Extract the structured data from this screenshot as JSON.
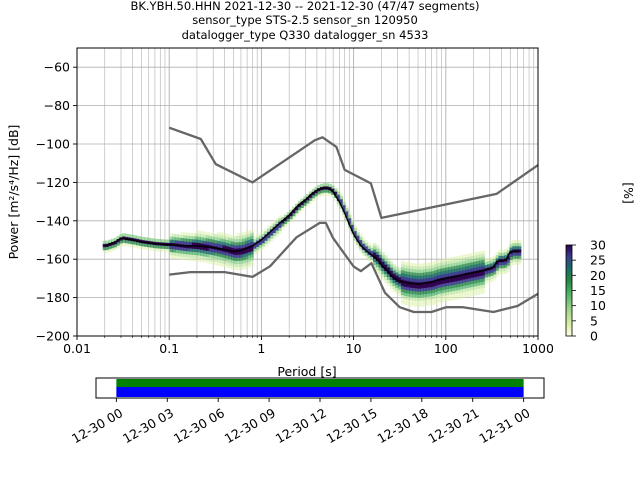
{
  "chart_data": {
    "type": "line",
    "title_lines": [
      "BK.YBH.50.HHN   2021-12-30 -- 2021-12-30  (47/47 segments)",
      "sensor_type STS-2.5 sensor_sn 120950",
      "datalogger_type Q330 datalogger_sn 4533"
    ],
    "xlabel": "Period [s]",
    "ylabel": "Power [m²/s⁴/Hz] [dB]",
    "x_scale": "log",
    "xlim": [
      0.01,
      1000
    ],
    "ylim": [
      -200,
      -50
    ],
    "x_ticks": [
      {
        "value": 0.01,
        "label": "0.01"
      },
      {
        "value": 0.1,
        "label": "0.1"
      },
      {
        "value": 1,
        "label": "1"
      },
      {
        "value": 10,
        "label": "10"
      },
      {
        "value": 100,
        "label": "100"
      },
      {
        "value": 1000,
        "label": "1000"
      }
    ],
    "y_ticks": [
      {
        "value": -60,
        "label": "−60"
      },
      {
        "value": -80,
        "label": "−80"
      },
      {
        "value": -100,
        "label": "−100"
      },
      {
        "value": -120,
        "label": "−120"
      },
      {
        "value": -140,
        "label": "−140"
      },
      {
        "value": -160,
        "label": "−160"
      },
      {
        "value": -180,
        "label": "−180"
      },
      {
        "value": -200,
        "label": "−200"
      }
    ],
    "grid": true,
    "series": [
      {
        "role": "mean",
        "color": "#000000",
        "points": [
          [
            0.02,
            -153
          ],
          [
            0.025,
            -151.5
          ],
          [
            0.03,
            -149
          ],
          [
            0.04,
            -150
          ],
          [
            0.05,
            -151
          ],
          [
            0.07,
            -152
          ],
          [
            0.1,
            -152.5
          ],
          [
            0.15,
            -153
          ],
          [
            0.2,
            -153
          ],
          [
            0.3,
            -154
          ],
          [
            0.4,
            -155
          ],
          [
            0.5,
            -156
          ],
          [
            0.6,
            -155.5
          ],
          [
            0.8,
            -153
          ],
          [
            1,
            -150
          ],
          [
            1.3,
            -145
          ],
          [
            1.6,
            -141
          ],
          [
            2,
            -137
          ],
          [
            2.5,
            -132
          ],
          [
            3,
            -129
          ],
          [
            3.5,
            -126
          ],
          [
            4,
            -124
          ],
          [
            4.5,
            -123
          ],
          [
            5,
            -123
          ],
          [
            5.5,
            -123.5
          ],
          [
            6,
            -125
          ],
          [
            7,
            -130
          ],
          [
            8,
            -136
          ],
          [
            9,
            -142
          ],
          [
            10,
            -147
          ],
          [
            12,
            -153
          ],
          [
            14,
            -156
          ],
          [
            16,
            -158
          ],
          [
            18,
            -160
          ],
          [
            20,
            -163
          ],
          [
            23,
            -166
          ],
          [
            26,
            -169
          ],
          [
            30,
            -171
          ],
          [
            35,
            -172
          ],
          [
            40,
            -172.5
          ],
          [
            50,
            -173
          ],
          [
            60,
            -172.5
          ],
          [
            70,
            -172
          ],
          [
            80,
            -171
          ],
          [
            100,
            -170
          ],
          [
            130,
            -169
          ],
          [
            160,
            -168
          ],
          [
            200,
            -167
          ],
          [
            250,
            -166
          ],
          [
            300,
            -165
          ],
          [
            330,
            -164
          ],
          [
            360,
            -161
          ],
          [
            400,
            -161
          ],
          [
            450,
            -160.5
          ],
          [
            500,
            -156
          ],
          [
            560,
            -156
          ],
          [
            620,
            -156
          ]
        ]
      },
      {
        "role": "high-noise-model",
        "color": "#666666",
        "points": [
          [
            0.1,
            -91.5
          ],
          [
            0.22,
            -97.4
          ],
          [
            0.32,
            -110.5
          ],
          [
            0.8,
            -120
          ],
          [
            3.8,
            -98
          ],
          [
            4.6,
            -96.5
          ],
          [
            6.5,
            -101.5
          ],
          [
            8,
            -113.5
          ],
          [
            15.4,
            -120.5
          ],
          [
            20,
            -138.5
          ],
          [
            354.8,
            -126
          ],
          [
            1000,
            -111
          ]
        ]
      },
      {
        "role": "low-noise-model",
        "color": "#666666",
        "points": [
          [
            0.1,
            -168
          ],
          [
            0.17,
            -166.7
          ],
          [
            0.4,
            -166.7
          ],
          [
            0.8,
            -169.2
          ],
          [
            1.24,
            -163.7
          ],
          [
            2.4,
            -148.6
          ],
          [
            4.3,
            -141.1
          ],
          [
            5,
            -141.1
          ],
          [
            6,
            -149
          ],
          [
            10,
            -163.8
          ],
          [
            12,
            -166.2
          ],
          [
            15.6,
            -162.1
          ],
          [
            21.9,
            -177.5
          ],
          [
            31.6,
            -185
          ],
          [
            45,
            -187.5
          ],
          [
            70,
            -187.5
          ],
          [
            101,
            -185
          ],
          [
            154,
            -185
          ],
          [
            328,
            -187.5
          ],
          [
            600,
            -184.4
          ],
          [
            1000,
            -178
          ]
        ]
      }
    ],
    "density_note": "histogram of PSD occurrence percentages",
    "colorbar": {
      "label": "[%]",
      "min": 0,
      "max": 30,
      "ticks": [
        "0",
        "5",
        "10",
        "15",
        "20",
        "25",
        "30"
      ],
      "colors": [
        "#ffffe5",
        "#d9f0a3",
        "#addd8e",
        "#78c679",
        "#41ab5d",
        "#238443",
        "#1d6a6a",
        "#3a3a8c",
        "#2d004b"
      ]
    },
    "timeline": {
      "tick_labels": [
        "12-30 00",
        "12-30 03",
        "12-30 06",
        "12-30 09",
        "12-30 12",
        "12-30 15",
        "12-30 18",
        "12-30 21",
        "12-31 00"
      ],
      "bands": [
        {
          "color": "#008000",
          "start_hour": 0,
          "end_hour": 24
        },
        {
          "color": "#0000ff",
          "start_hour": 0,
          "end_hour": 24
        }
      ],
      "range_hours": [
        -1.2,
        25.2
      ]
    }
  }
}
